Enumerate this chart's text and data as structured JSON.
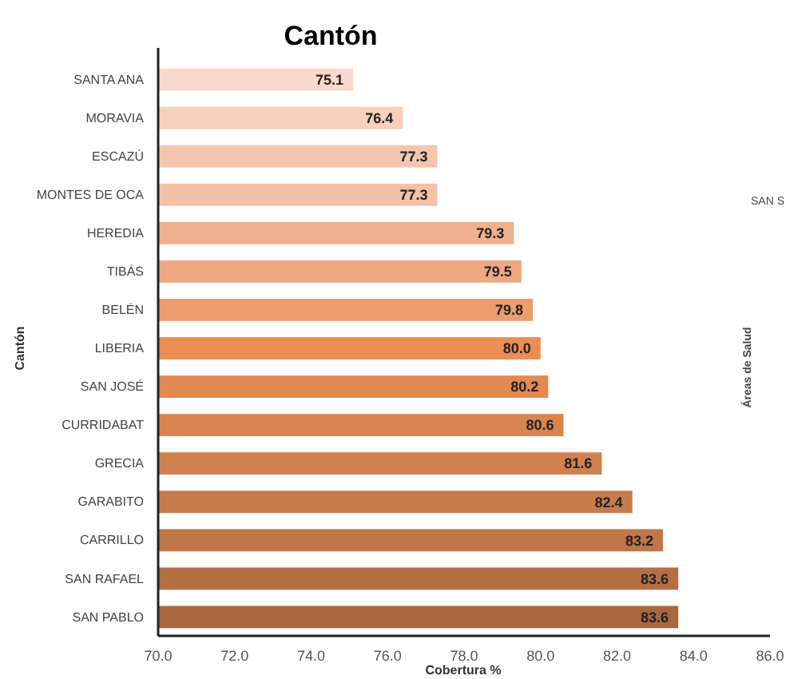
{
  "chart_data": {
    "type": "bar",
    "orientation": "horizontal",
    "title": "Cantón",
    "xlabel": "Cobertura %",
    "ylabel": "Cantón",
    "categories": [
      "SANTA ANA",
      "MORAVIA",
      "ESCAZÚ",
      "MONTES DE OCA",
      "HEREDIA",
      "TIBÁS",
      "BELÉN",
      "LIBERIA",
      "SAN JOSÉ",
      "CURRIDABAT",
      "GRECIA",
      "GARABITO",
      "CARRILLO",
      "SAN RAFAEL",
      "SAN PABLO"
    ],
    "values": [
      75.1,
      76.4,
      77.3,
      77.3,
      79.3,
      79.5,
      79.8,
      80.0,
      80.2,
      80.6,
      81.6,
      82.4,
      83.2,
      83.6,
      83.6
    ],
    "value_labels": [
      "75.1",
      "76.4",
      "77.3",
      "77.3",
      "79.3",
      "79.5",
      "79.8",
      "80.0",
      "80.2",
      "80.6",
      "81.6",
      "82.4",
      "83.2",
      "83.6",
      "83.6"
    ],
    "colors": [
      "#f8d9cb",
      "#f6d0bd",
      "#f4c5ae",
      "#f3c1a8",
      "#f0b08f",
      "#efa883",
      "#ec9c6d",
      "#ea8e52",
      "#e18a52",
      "#d98550",
      "#d1814f",
      "#c87c4c",
      "#c07649",
      "#b56f44",
      "#a8673f"
    ],
    "xlim": [
      70,
      86
    ],
    "xticks": [
      {
        "value": 70,
        "label": "70.0"
      },
      {
        "value": 72,
        "label": "72.0"
      },
      {
        "value": 74,
        "label": "74.0"
      },
      {
        "value": 76,
        "label": "76.0"
      },
      {
        "value": 78,
        "label": "78.0"
      },
      {
        "value": 80,
        "label": "80.0"
      },
      {
        "value": 82,
        "label": "82.0"
      },
      {
        "value": 84,
        "label": "84.0"
      },
      {
        "value": 86,
        "label": "86.0"
      }
    ],
    "annotations": [
      "SAN S",
      "Áreas de Salud"
    ]
  }
}
